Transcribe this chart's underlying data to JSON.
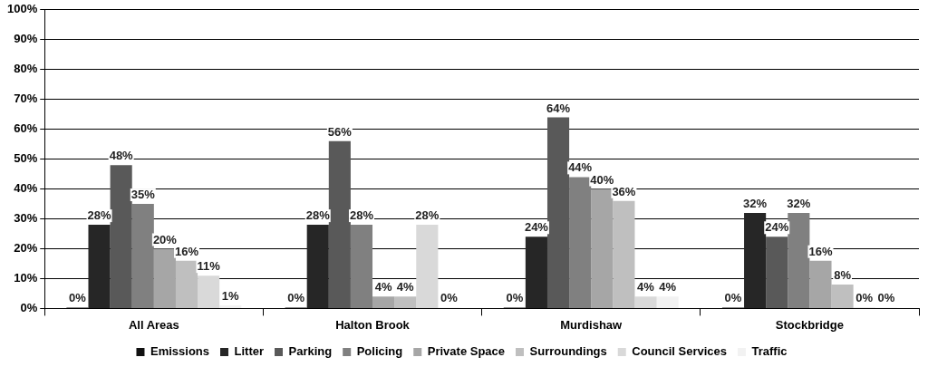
{
  "chart_data": {
    "type": "bar",
    "categories": [
      "All Areas",
      "Halton Brook",
      "Murdishaw",
      "Stockbridge"
    ],
    "series": [
      {
        "name": "Emissions",
        "color": "#111111",
        "values": [
          0,
          0,
          0,
          0
        ],
        "value_labels": [
          "0%",
          "0%",
          "0%",
          "0%"
        ]
      },
      {
        "name": "Litter",
        "color": "#262626",
        "values": [
          28,
          28,
          24,
          32
        ],
        "value_labels": [
          "28%",
          "28%",
          "24%",
          "32%"
        ]
      },
      {
        "name": "Parking",
        "color": "#595959",
        "values": [
          48,
          56,
          64,
          24
        ],
        "value_labels": [
          "48%",
          "56%",
          "64%",
          "24%"
        ]
      },
      {
        "name": "Policing",
        "color": "#808080",
        "values": [
          35,
          28,
          44,
          32
        ],
        "value_labels": [
          "35%",
          "28%",
          "44%",
          "32%"
        ]
      },
      {
        "name": "Private Space",
        "color": "#a6a6a6",
        "values": [
          20,
          4,
          40,
          16
        ],
        "value_labels": [
          "20%",
          "4%",
          "40%",
          "16%"
        ]
      },
      {
        "name": "Surroundings",
        "color": "#bfbfbf",
        "values": [
          16,
          4,
          36,
          8
        ],
        "value_labels": [
          "16%",
          "4%",
          "36%",
          "8%"
        ]
      },
      {
        "name": "Council Services",
        "color": "#d9d9d9",
        "values": [
          11,
          28,
          4,
          0
        ],
        "value_labels": [
          "11%",
          "28%",
          "4%",
          "0%"
        ]
      },
      {
        "name": "Traffic",
        "color": "#f2f2f2",
        "values": [
          1,
          0,
          4,
          0
        ],
        "value_labels": [
          "1%",
          "0%",
          "4%",
          "0%"
        ]
      }
    ],
    "ylim": [
      0,
      100
    ],
    "yticks": [
      {
        "value": 0,
        "label": "0%"
      },
      {
        "value": 10,
        "label": "10%"
      },
      {
        "value": 20,
        "label": "20%"
      },
      {
        "value": 30,
        "label": "30%"
      },
      {
        "value": 40,
        "label": "40%"
      },
      {
        "value": 50,
        "label": "50%"
      },
      {
        "value": 60,
        "label": "60%"
      },
      {
        "value": 70,
        "label": "70%"
      },
      {
        "value": 80,
        "label": "80%"
      },
      {
        "value": 90,
        "label": "90%"
      },
      {
        "value": 100,
        "label": "100%"
      }
    ],
    "grid": "y",
    "legend": "bottom"
  }
}
